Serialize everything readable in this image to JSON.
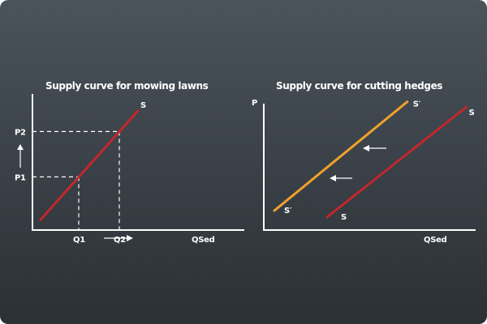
{
  "colors": {
    "supply": "#c2272d",
    "shifted_supply": "#f2a12b",
    "axis": "#ffffff"
  },
  "chart_data": [
    {
      "type": "line",
      "title": "Supply curve for mowing lawns",
      "xlabel": "QSed",
      "ylabel": "",
      "xlim": [
        0,
        10
      ],
      "ylim": [
        0,
        10
      ],
      "grid": false,
      "series": [
        {
          "name": "S",
          "label": "S",
          "color": "#c2272d",
          "points": [
            [
              0.5,
              0.8
            ],
            [
              6.5,
              9.2
            ]
          ]
        }
      ],
      "reference_points": [
        {
          "x": 2.85,
          "y": 4.1,
          "xlabel": "Q1",
          "ylabel": "P1"
        },
        {
          "x": 5.35,
          "y": 7.6,
          "xlabel": "Q2",
          "ylabel": "P2"
        }
      ],
      "annotations": [
        "Q1 → Q2",
        "P1 → P2"
      ]
    },
    {
      "type": "line",
      "title": "Supply curve for cutting hedges",
      "xlabel": "QSed",
      "ylabel": "P",
      "xlim": [
        0,
        10
      ],
      "ylim": [
        0,
        10
      ],
      "grid": false,
      "series": [
        {
          "name": "S",
          "label": "S",
          "color": "#c2272d",
          "points": [
            [
              3.0,
              1.0
            ],
            [
              9.6,
              9.5
            ]
          ]
        },
        {
          "name": "S'",
          "label": "S′",
          "color": "#f2a12b",
          "points": [
            [
              0.5,
              1.5
            ],
            [
              6.8,
              9.9
            ]
          ]
        }
      ],
      "annotations": [
        "shift left",
        "shift left"
      ]
    }
  ]
}
